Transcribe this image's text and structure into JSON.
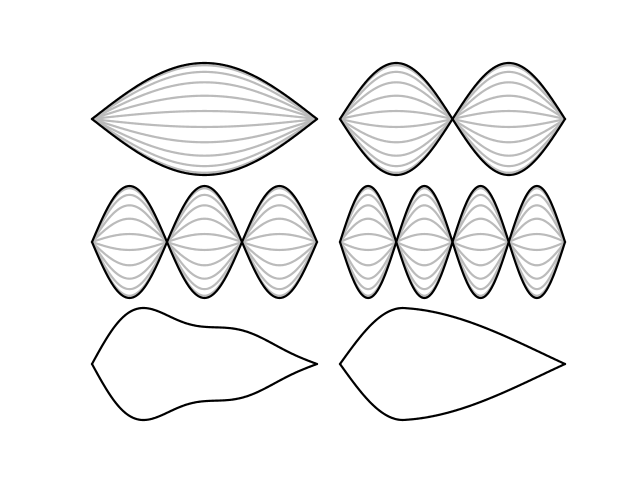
{
  "diagram": {
    "colors": {
      "background": "#ffffff",
      "envelope": "#000000",
      "harmonic_lines": "#bbbbbb"
    },
    "panels": [
      {
        "name": "mode-1",
        "kind": "standing-wave",
        "mode": 1,
        "inner_lines": 10
      },
      {
        "name": "mode-2",
        "kind": "standing-wave",
        "mode": 2,
        "inner_lines": 10
      },
      {
        "name": "mode-3",
        "kind": "standing-wave",
        "mode": 3,
        "inner_lines": 10
      },
      {
        "name": "mode-4",
        "kind": "standing-wave",
        "mode": 4,
        "inner_lines": 10
      },
      {
        "name": "superposition-shape",
        "kind": "wavy-envelope"
      },
      {
        "name": "plucked-shape",
        "kind": "teardrop-envelope"
      }
    ]
  }
}
